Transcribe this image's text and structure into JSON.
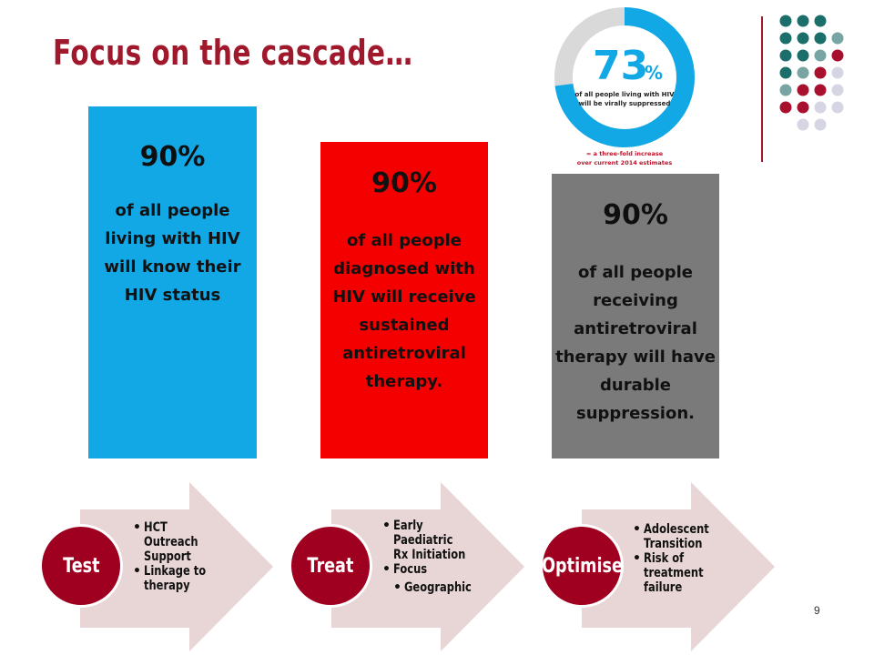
{
  "title": "Focus on the cascade…",
  "targets": [
    {
      "percent": "90%",
      "description": "of all people living with HIV will know their HIV status",
      "color": "#12a8e6"
    },
    {
      "percent": "90%",
      "description": "of all people diagnosed with HIV will receive sustained antiretroviral therapy.",
      "color": "#f40000"
    },
    {
      "percent": "90%",
      "description": "of all people receiving antiretroviral therapy will have durable suppression.",
      "color": "#7a7a7a"
    }
  ],
  "badge": {
    "value": "73",
    "unit": "%",
    "value_fraction": 0.73,
    "line1": "of all people living with HIV",
    "line2": "will be virally suppressed",
    "footnote1": "= a three-fold increase",
    "footnote2": "over current 2014 estimates",
    "ring_color": "#12a8e6",
    "rest_color": "#d9d9d9"
  },
  "stages": [
    {
      "label": "Test",
      "bullets": [
        "HCT\nOutreach\nSupport",
        "Linkage to\ntherapy"
      ]
    },
    {
      "label": "Treat",
      "bullets": [
        "Early\nPaediatric\nRx Initiation",
        "Focus",
        "Geographic"
      ]
    },
    {
      "label": "Optimise",
      "bullets": [
        "Adolescent\nTransition",
        "Risk of\ntreatment\nfailure"
      ]
    }
  ],
  "colors": {
    "accent": "#a0182b",
    "arrow": "#e8d5d5",
    "stage_circle": "#a0001f",
    "dot_teal": "#1b6e6a",
    "dot_sage": "#78a5a3",
    "dot_crimson": "#a8102e",
    "dot_lavender": "#d5d5e3"
  },
  "page_number": "9"
}
